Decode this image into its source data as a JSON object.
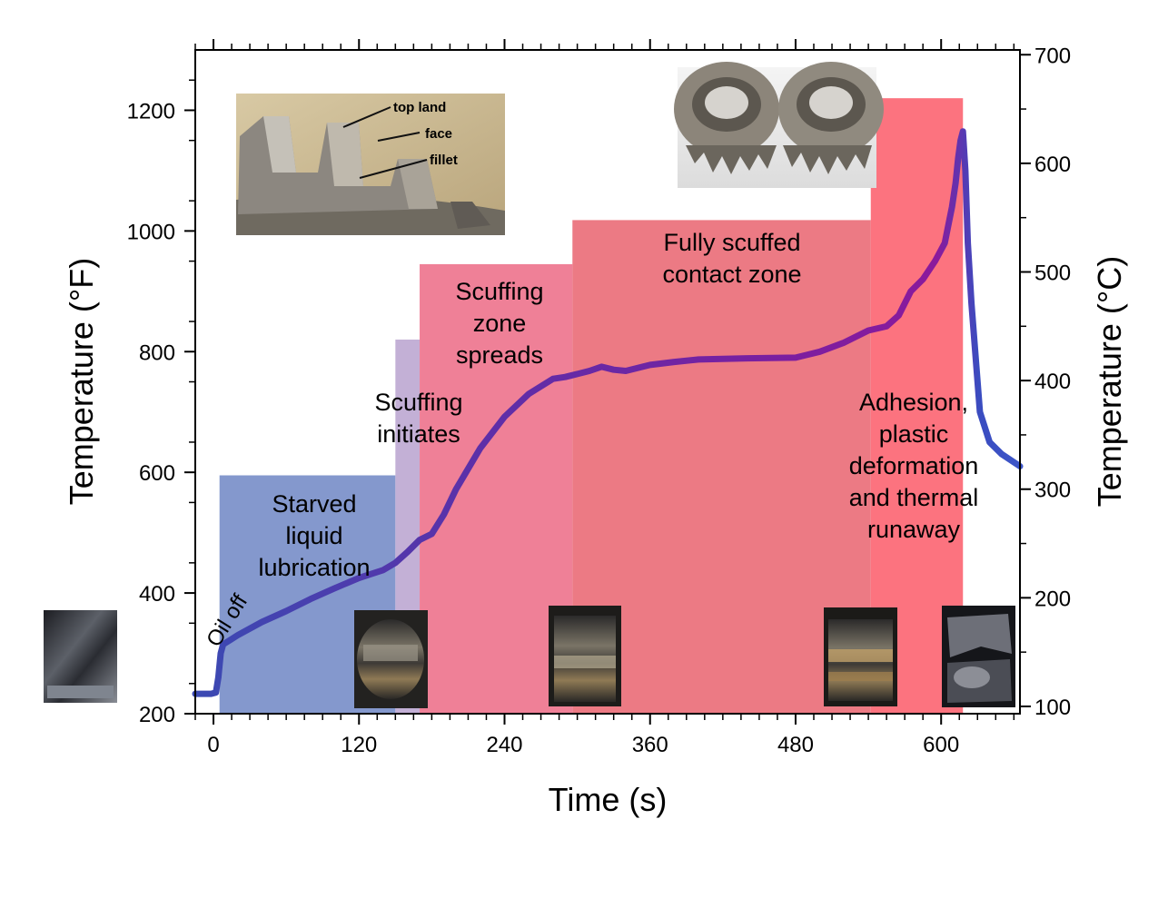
{
  "chart_data": {
    "type": "line",
    "xlabel": "Time (s)",
    "ylabel_left": "Temperature (°F)",
    "ylabel_right": "Temperature (°C)",
    "xlim": [
      -15,
      665
    ],
    "ylim_left": [
      200,
      1300
    ],
    "ylim_right": [
      93.3,
      704.4
    ],
    "x_ticks": [
      0,
      120,
      240,
      360,
      480,
      600
    ],
    "y_ticks_left": [
      200,
      400,
      600,
      800,
      1000,
      1200
    ],
    "y_ticks_right": [
      100,
      200,
      300,
      400,
      500,
      600,
      700
    ],
    "grid": false,
    "regions": [
      {
        "x0": 5,
        "x1": 150,
        "ytop": 595,
        "color": "#6f86c4",
        "lines": [
          "Starved",
          "liquid",
          "lubrication"
        ]
      },
      {
        "x0": 150,
        "x1": 170,
        "ytop": 820,
        "color": "#b9a2cf",
        "lines": []
      },
      {
        "x0": 170,
        "x1": 296,
        "ytop": 945,
        "color": "#ec6a85",
        "lines": [
          "Scuffing",
          "zone",
          "spreads"
        ]
      },
      {
        "x0": 296,
        "x1": 542,
        "ytop": 1018,
        "color": "#e9636f",
        "lines": [
          "Fully scuffed",
          "contact zone"
        ]
      },
      {
        "x0": 542,
        "x1": 618,
        "ytop": 1220,
        "color": "#fb5a68",
        "lines": [
          "Adhesion,",
          "plastic",
          "deformation",
          "and thermal",
          "runaway"
        ]
      }
    ],
    "annotations": [
      {
        "text_lines": [
          "Scuffing",
          "initiates"
        ]
      },
      {
        "text_lines": [
          "Oil off"
        ]
      },
      {
        "text_lines": [
          "top land",
          "face",
          "fillet"
        ]
      }
    ],
    "series": [
      {
        "x": [
          -15,
          -2,
          2,
          4,
          6,
          8,
          12,
          20,
          40,
          60,
          80,
          100,
          120,
          140,
          150,
          160,
          170,
          180,
          190,
          200,
          220,
          240,
          260,
          280,
          290,
          300,
          310,
          320,
          330,
          340,
          360,
          380,
          400,
          440,
          480,
          500,
          520,
          540,
          555,
          565,
          575,
          585,
          595,
          603,
          606,
          609,
          612,
          614,
          616,
          618,
          620,
          622,
          625,
          632,
          640,
          650,
          665
        ],
        "y": [
          233,
          233,
          235,
          260,
          300,
          315,
          320,
          330,
          352,
          370,
          390,
          408,
          425,
          438,
          450,
          468,
          488,
          498,
          530,
          572,
          640,
          692,
          730,
          755,
          758,
          763,
          768,
          775,
          770,
          768,
          778,
          783,
          787,
          789,
          790,
          800,
          815,
          835,
          842,
          860,
          900,
          920,
          950,
          980,
          1010,
          1040,
          1080,
          1120,
          1150,
          1165,
          1100,
          980,
          880,
          700,
          650,
          630,
          610
        ]
      }
    ]
  },
  "photos": {
    "gear_teeth": {
      "labels": [
        "top land",
        "face",
        "fillet"
      ]
    },
    "scuffed_gears": {},
    "flank_samples": [
      "pristine",
      "starved",
      "initiates",
      "spreads",
      "fully-scuffed",
      "runaway"
    ]
  }
}
